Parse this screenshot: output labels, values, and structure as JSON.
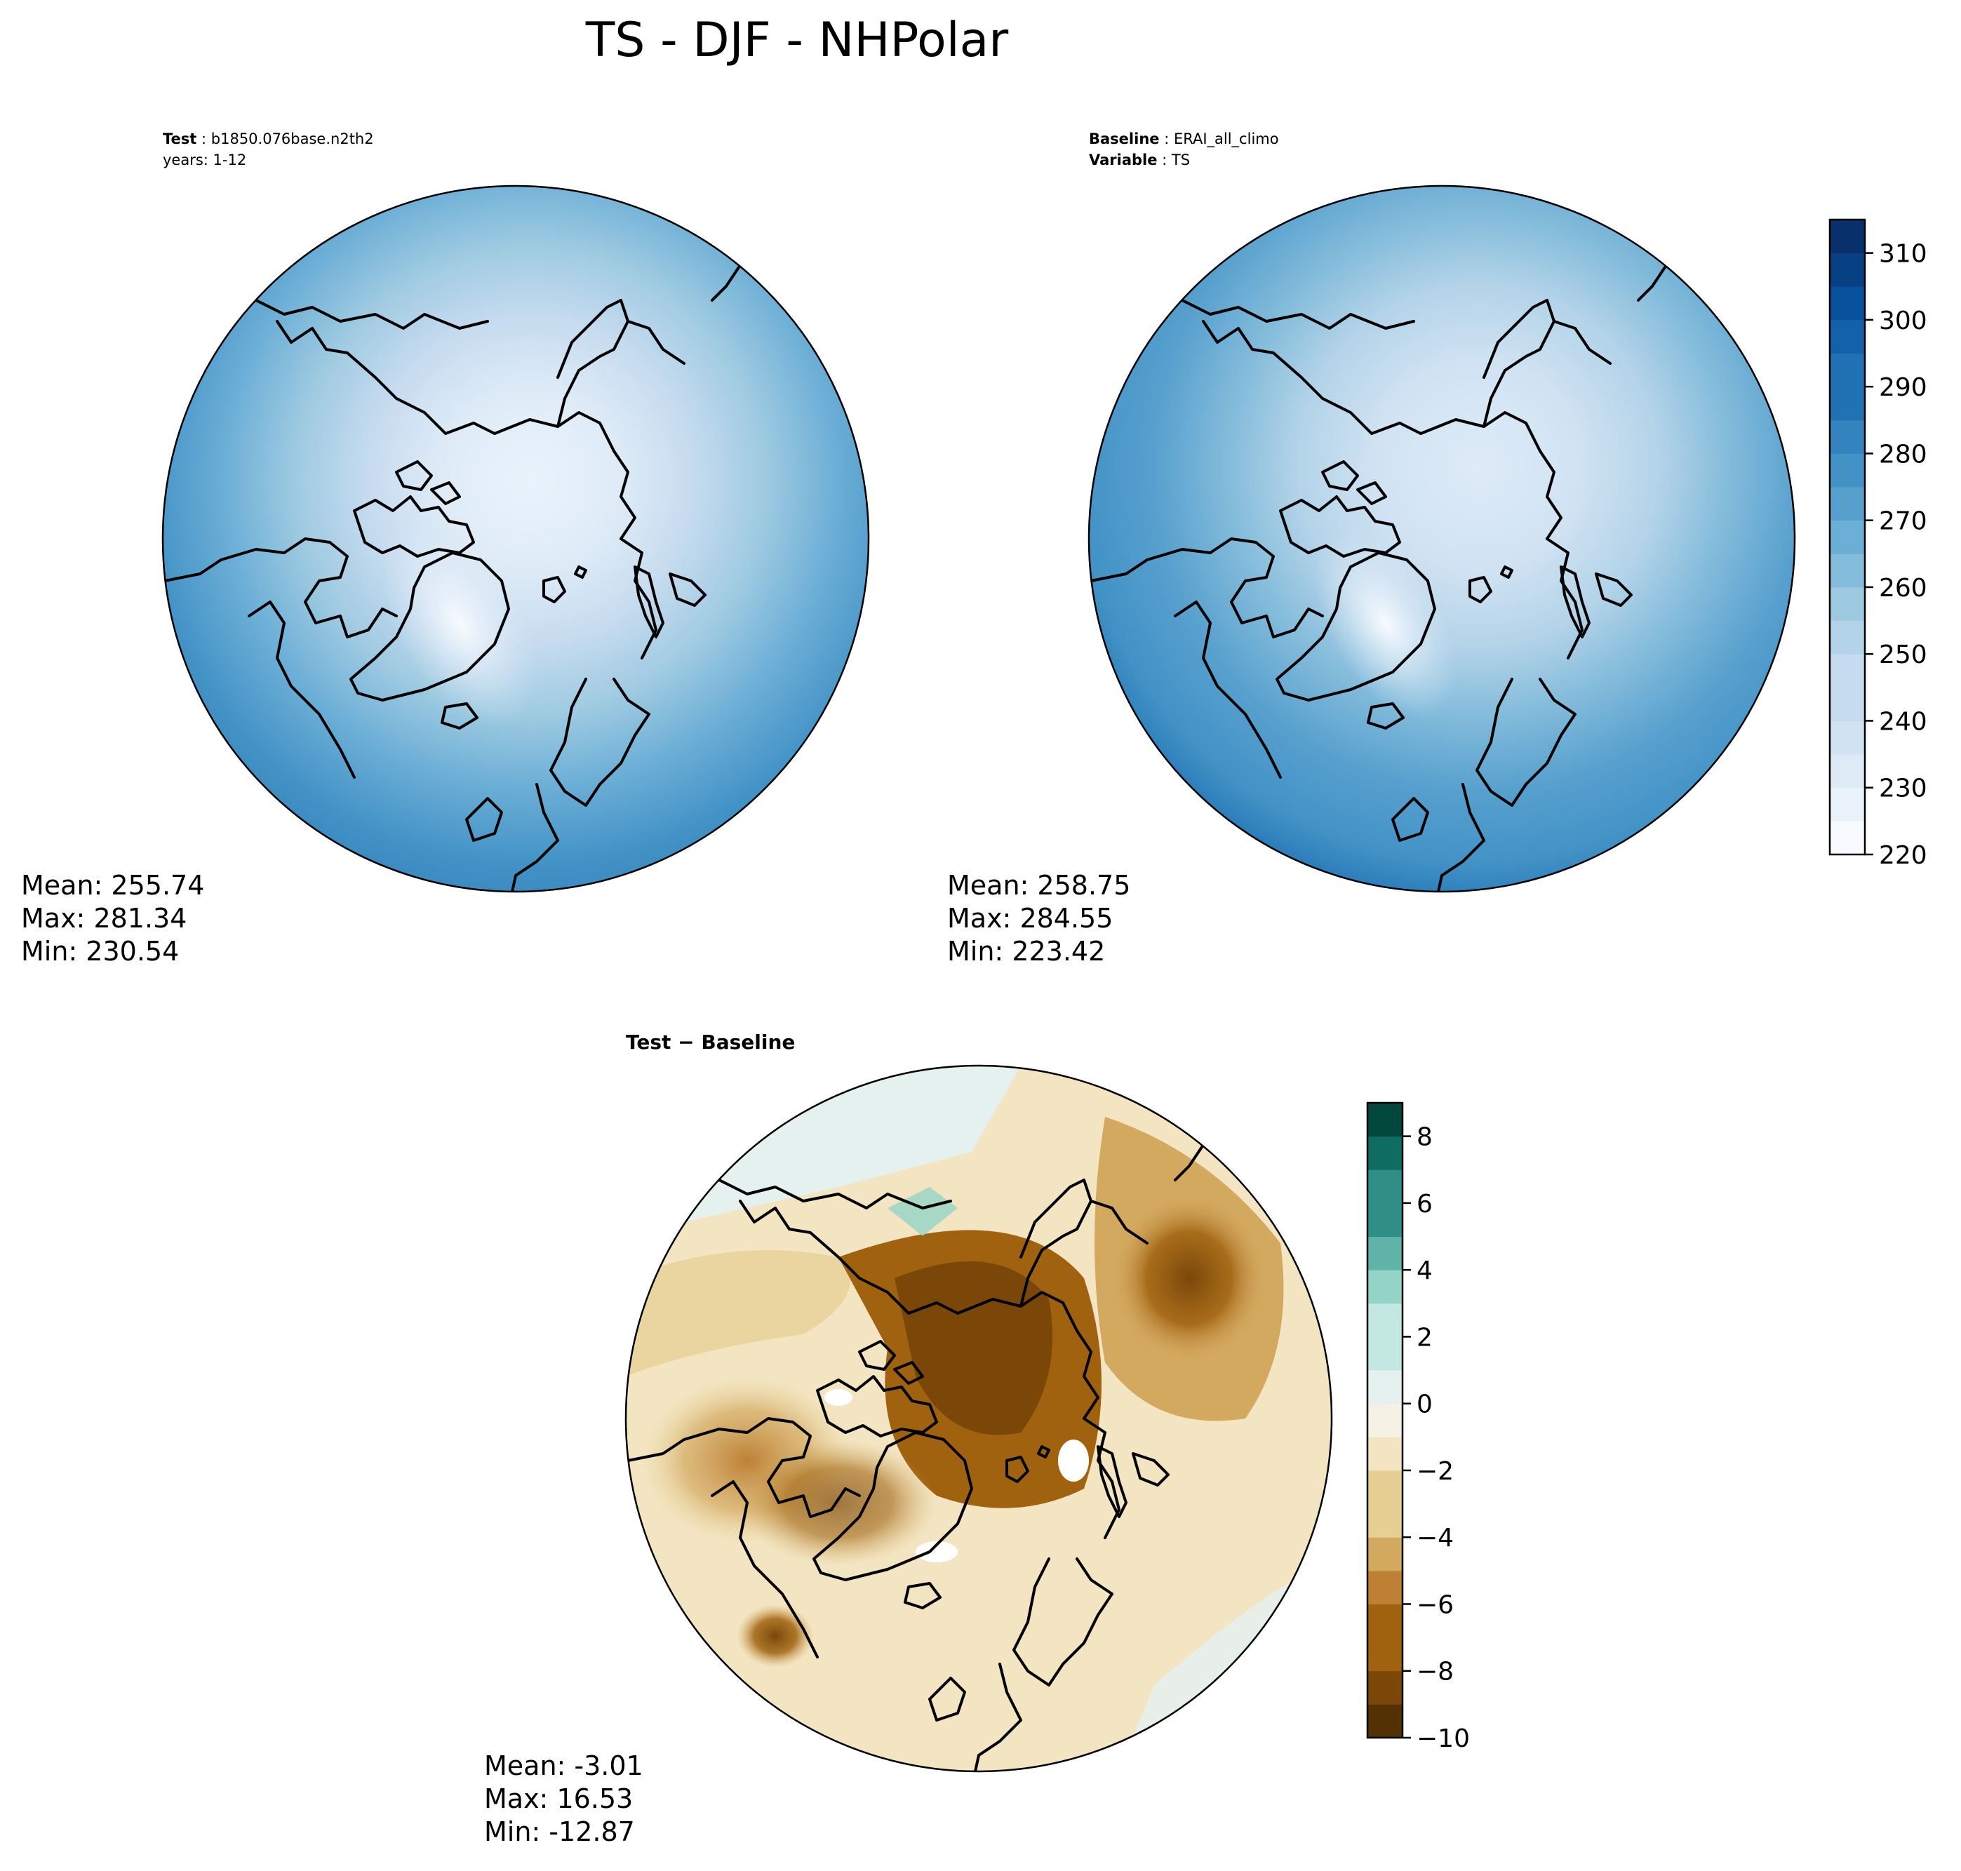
{
  "title": "TS - DJF - NHPolar",
  "chart_data": [
    {
      "type": "heatmap",
      "projection": "north-polar-stereographic",
      "header": [
        {
          "bold": "Test",
          "text": "b1850.076base.n2th2"
        },
        {
          "bold": "",
          "text": "years: 1-12"
        }
      ],
      "stats": {
        "mean": "Mean: 255.74",
        "max": "Max: 281.34",
        "min": "Min: 230.54"
      },
      "shared_colorbar": true
    },
    {
      "type": "heatmap",
      "projection": "north-polar-stereographic",
      "header": [
        {
          "bold": "Baseline",
          "text": "ERAI_all_climo"
        },
        {
          "bold": "Variable",
          "text": "TS"
        }
      ],
      "stats": {
        "mean": "Mean: 258.75",
        "max": "Max: 284.55",
        "min": "Min: 223.42"
      },
      "colorbar": {
        "colormap": "Blues",
        "range": [
          220,
          315
        ],
        "levels": [
          220,
          225,
          230,
          235,
          240,
          245,
          250,
          255,
          260,
          265,
          270,
          275,
          280,
          285,
          290,
          295,
          300,
          305,
          310,
          315
        ],
        "ticks": [
          "220",
          "230",
          "240",
          "250",
          "260",
          "270",
          "280",
          "290",
          "300",
          "310"
        ],
        "tick_values": [
          220,
          230,
          240,
          250,
          260,
          270,
          280,
          290,
          300,
          310
        ]
      }
    },
    {
      "type": "heatmap",
      "projection": "north-polar-stereographic",
      "header": [
        {
          "bold": "Test − Baseline",
          "text": ""
        }
      ],
      "stats": {
        "mean": "Mean: -3.01",
        "max": "Max: 16.53",
        "min": "Min: -12.87"
      },
      "colorbar": {
        "colormap": "BrBG",
        "range": [
          -10,
          9
        ],
        "levels": [
          -10,
          -9,
          -8,
          -7,
          -6,
          -5,
          -4,
          -3,
          -2,
          -1,
          0,
          1,
          2,
          3,
          4,
          5,
          6,
          7,
          8,
          9
        ],
        "ticks": [
          "−10",
          "−8",
          "−6",
          "−4",
          "−2",
          "0",
          "2",
          "4",
          "6",
          "8"
        ],
        "tick_values": [
          -10,
          -8,
          -6,
          -4,
          -2,
          0,
          2,
          4,
          6,
          8
        ]
      }
    }
  ],
  "colors": {
    "blues": [
      "#f7fbff",
      "#eaf3fc",
      "#deebf7",
      "#d1e3f3",
      "#c6dbef",
      "#b3d3e8",
      "#9ecae1",
      "#84bcdb",
      "#6baed6",
      "#57a0ce",
      "#4292c6",
      "#3383be",
      "#2171b5",
      "#1361a9",
      "#08519c",
      "#084084",
      "#08306b"
    ],
    "brbg": [
      "#543005",
      "#7a4709",
      "#a0620f",
      "#bd8035",
      "#d3a85f",
      "#e6cf93",
      "#f3e5c2",
      "#f5f1e4",
      "#e4f1ef",
      "#c2e8e1",
      "#94d4c7",
      "#5fb3a8",
      "#2f8f87",
      "#0e6c61",
      "#01473c"
    ]
  }
}
